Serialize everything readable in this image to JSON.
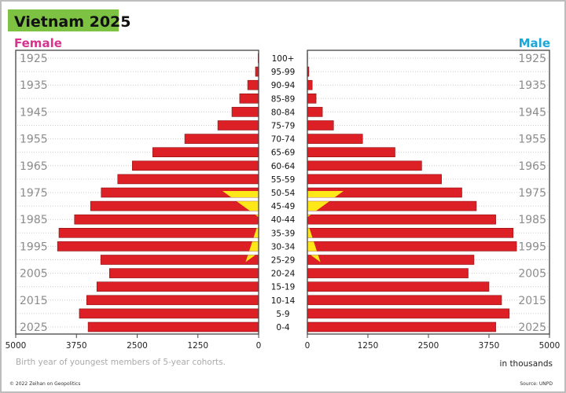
{
  "title": "Vietnam 2025",
  "colors": {
    "title_bg": "#7dc242",
    "female": "#d6338f",
    "male": "#1aa6d6",
    "bar": "#dd1f26",
    "star": "#ffe81a",
    "year_text": "#8c8c8c"
  },
  "footer": {
    "note": "Birth year of youngest members of 5-year cohorts.",
    "copyright": "© 2022 Zeihan on Geopolitics",
    "source": "Source: UNPD"
  },
  "chart_data": {
    "type": "bar",
    "orientation": "horizontal",
    "subtype": "population-pyramid",
    "title": "Vietnam 2025",
    "left_label": "Female",
    "right_label": "Male",
    "unit_label": "in thousands",
    "categories": [
      "100+",
      "95-99",
      "90-94",
      "85-89",
      "80-84",
      "75-79",
      "70-74",
      "65-69",
      "60-64",
      "55-59",
      "50-54",
      "45-49",
      "40-44",
      "35-39",
      "30-34",
      "25-29",
      "20-24",
      "15-19",
      "10-14",
      "5-9",
      "0-4"
    ],
    "series": [
      {
        "name": "Female",
        "values": [
          10,
          65,
          225,
          390,
          550,
          840,
          1520,
          2180,
          2600,
          2900,
          3240,
          3460,
          3790,
          4110,
          4140,
          3250,
          3070,
          3330,
          3540,
          3690,
          3510
        ]
      },
      {
        "name": "Male",
        "values": [
          5,
          30,
          100,
          180,
          310,
          540,
          1140,
          1810,
          2360,
          2770,
          3190,
          3490,
          3890,
          4250,
          4320,
          3440,
          3320,
          3750,
          4010,
          4170,
          3890
        ]
      }
    ],
    "birth_year_labels": [
      "1925",
      "1935",
      "1945",
      "1955",
      "1965",
      "1975",
      "1985",
      "1995",
      "2005",
      "2015",
      "2025"
    ],
    "xlim": [
      0,
      5000
    ],
    "female_ticks": [
      "5000",
      "3750",
      "2500",
      "1250",
      "0"
    ],
    "male_ticks": [
      "0",
      "1250",
      "2500",
      "3750",
      "5000"
    ],
    "tick_values": [
      0,
      1250,
      2500,
      3750,
      5000
    ],
    "grid": "dotted horizontal",
    "decoration": "yellow star of Vietnamese flag over bars"
  }
}
